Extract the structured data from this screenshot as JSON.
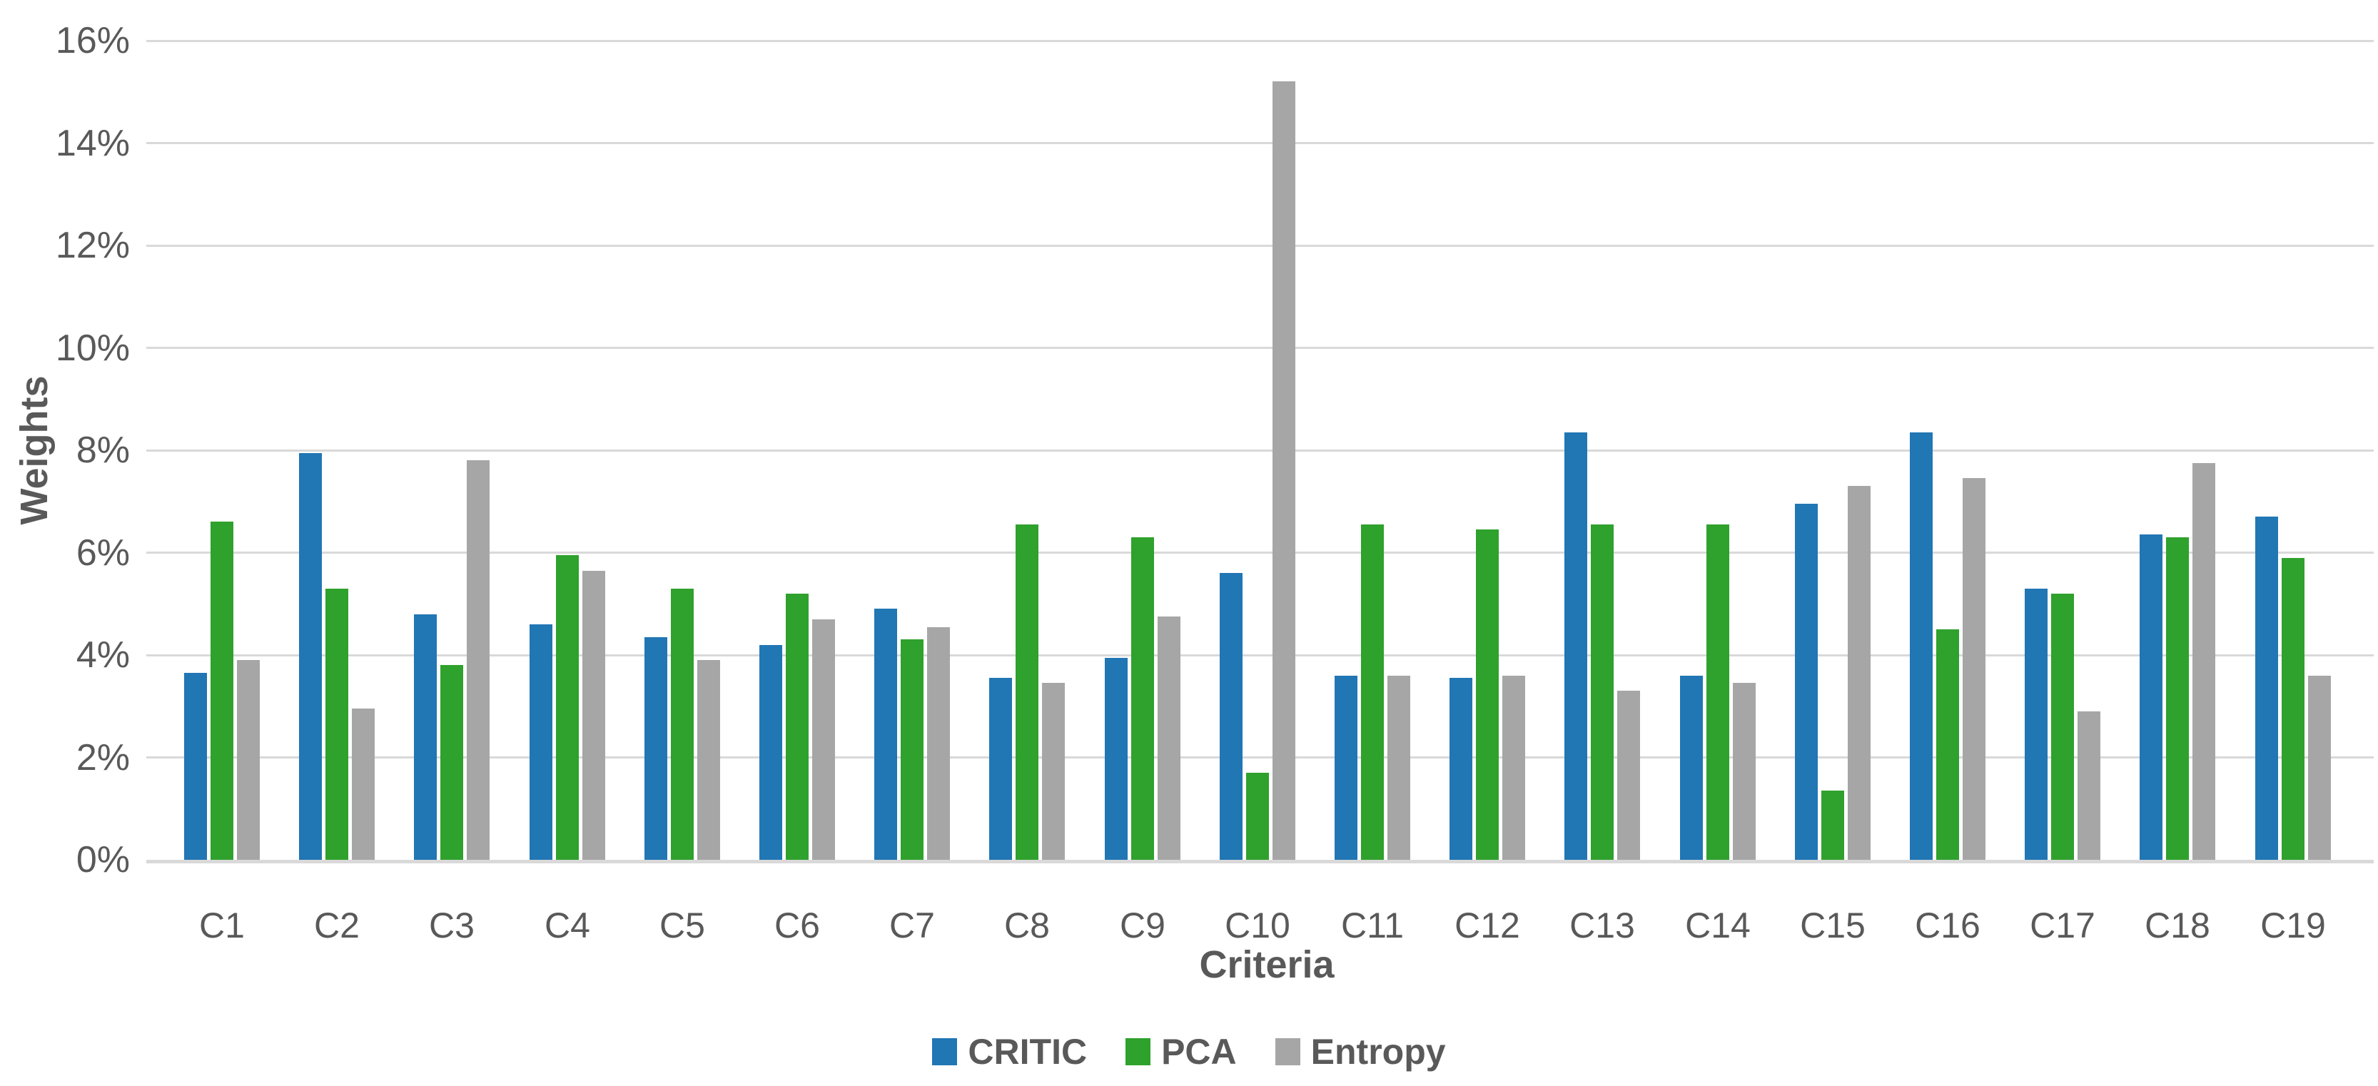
{
  "chart_data": {
    "type": "bar",
    "title": "",
    "xlabel": "Criteria",
    "ylabel": "Weights",
    "categories": [
      "C1",
      "C2",
      "C3",
      "C4",
      "C5",
      "C6",
      "C7",
      "C8",
      "C9",
      "C10",
      "C11",
      "C12",
      "C13",
      "C14",
      "C15",
      "C16",
      "C17",
      "C18",
      "C19"
    ],
    "series": [
      {
        "name": "CRITIC",
        "color": "#2176B4",
        "values": [
          3.65,
          7.95,
          4.8,
          4.6,
          4.35,
          4.2,
          4.9,
          3.55,
          3.95,
          5.6,
          3.6,
          3.55,
          8.35,
          3.6,
          6.95,
          8.35,
          5.3,
          6.35,
          6.7
        ]
      },
      {
        "name": "PCA",
        "color": "#2FA12D",
        "values": [
          6.6,
          5.3,
          3.8,
          5.95,
          5.3,
          5.2,
          4.3,
          6.55,
          6.3,
          1.7,
          6.55,
          6.45,
          6.55,
          6.55,
          1.35,
          4.5,
          5.2,
          6.3,
          5.9
        ]
      },
      {
        "name": "Entropy",
        "color": "#A6A6A6",
        "values": [
          3.9,
          2.95,
          7.8,
          5.65,
          3.9,
          4.7,
          4.55,
          3.45,
          4.75,
          15.2,
          3.6,
          3.6,
          3.3,
          3.45,
          7.3,
          7.45,
          2.9,
          7.75,
          3.6
        ]
      }
    ],
    "y_tick_labels": [
      "0%",
      "2%",
      "4%",
      "6%",
      "8%",
      "10%",
      "12%",
      "14%",
      "16%"
    ],
    "ylim": [
      0,
      16
    ],
    "unit": "%",
    "grid": true,
    "legend_position": "bottom"
  },
  "colors": {
    "gridline": "#D9D9D9",
    "axis_text": "#595959",
    "background": "#FFFFFF"
  }
}
